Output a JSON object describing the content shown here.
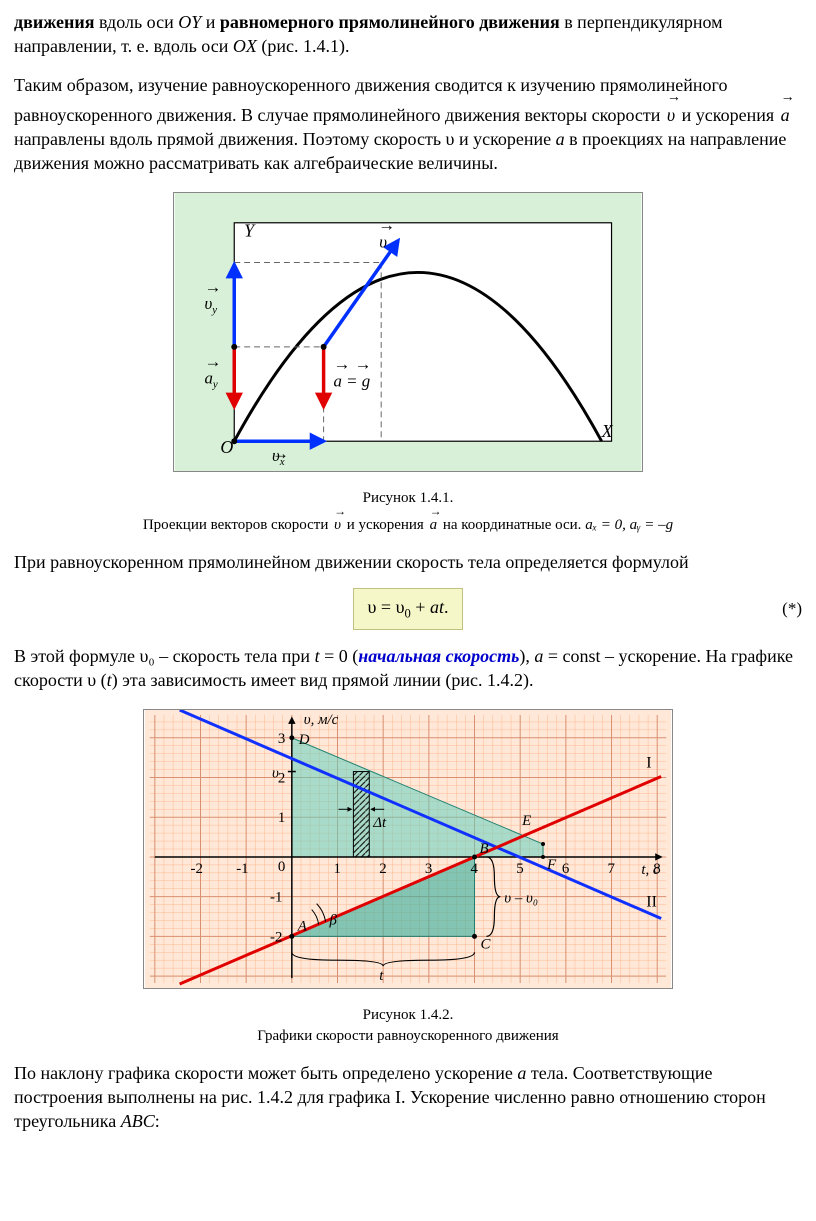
{
  "para1": {
    "s1": "движения",
    "s2": " вдоль оси ",
    "oy": "OY",
    "s3": " и ",
    "s4": "равномерного прямолинейного движения",
    "s5": " в перпендикулярном направлении, т. е. вдоль оси ",
    "ox": "OX",
    "s6": " (рис. 1.4.1)."
  },
  "para2": {
    "s1": "Таким образом, изучение равноускоренного движения сводится к изучению прямолинейного равноускоренного движения. В случае прямолинейного движения векторы скорости ",
    "v": "υ",
    "s2": " и ускорения ",
    "a": "a",
    "s3": " направлены вдоль прямой движения. Поэтому скорость υ и ускорение ",
    "a2": "a",
    "s4": " в проекциях на направление движения можно рассматривать как алгебраические величины."
  },
  "figure1": {
    "title": "Рисунок 1.4.1.",
    "caption_s1": "Проекции векторов скорости ",
    "caption_v": "υ",
    "caption_s2": " и ускорения ",
    "caption_a": "a",
    "caption_s3": " на координатные оси. ",
    "caption_eq": "aₓ = 0, aᵧ = –g",
    "labels": {
      "Y": "Y",
      "X": "X",
      "O": "O",
      "v": "υ",
      "vx": "υ",
      "vy": "υ",
      "ay": "a",
      "ag": "a",
      "g": "g"
    },
    "colors": {
      "frame_bg": "#d7f0d7",
      "inner_bg": "#ffffff",
      "curve": "#000000",
      "blue_vec": "#0030ff",
      "red_vec": "#e00000",
      "dash": "#666666"
    }
  },
  "para3": "При равноускоренном прямолинейном движении скорость тела определяется формулой",
  "formula": {
    "text": "υ = υ₀ + at.",
    "tag": "(*)",
    "bg": "#f5f7c9",
    "border": "#c0c080"
  },
  "para4": {
    "s1": "В этой формуле υ₀ – скорость тела при ",
    "t": "t",
    "s2": " = 0 (",
    "init": "начальная скорость",
    "s3": "), ",
    "a": "a",
    "s4": " = const – ускорение. На графике скорости υ (",
    "t2": "t",
    "s5": ") эта зависимость имеет вид прямой линии (рис. 1.4.2)."
  },
  "figure2": {
    "title": "Рисунок 1.4.2.",
    "caption": "Графики скорости равноускоренного движения",
    "axis": {
      "ylabel": "υ, м/с",
      "xlabel": "t, с",
      "xticks": [
        -2,
        -1,
        0,
        1,
        2,
        3,
        4,
        5,
        6,
        7,
        8
      ],
      "yticks": [
        -2,
        -1,
        1,
        2,
        3
      ]
    },
    "labels": {
      "A": "A",
      "B": "B",
      "C": "C",
      "D": "D",
      "E": "E",
      "F": "F",
      "I": "I",
      "II": "II",
      "beta": "β",
      "dt": "Δt",
      "v": "υ",
      "vv0": "υ – υ₀",
      "t": "t"
    },
    "colors": {
      "bg": "#ffe8d8",
      "grid_minor": "#ffb890",
      "grid_major": "#d89070",
      "line_blue": "#1030ff",
      "line_red": "#e00000",
      "fill_area": "#60d0c0",
      "axis": "#000000"
    },
    "geometry": {
      "scale_x": 46,
      "scale_y": 40,
      "origin_x": 148,
      "origin_y": 148
    }
  },
  "para5": {
    "s1": "По наклону графика скорости может быть определено ускорение ",
    "a": "a",
    "s2": " тела. Соответствующие построения выполнены на рис. 1.4.2 для графика I. Ускорение численно равно отношению сторон треугольника ",
    "abc": "ABC",
    "s3": ":"
  }
}
